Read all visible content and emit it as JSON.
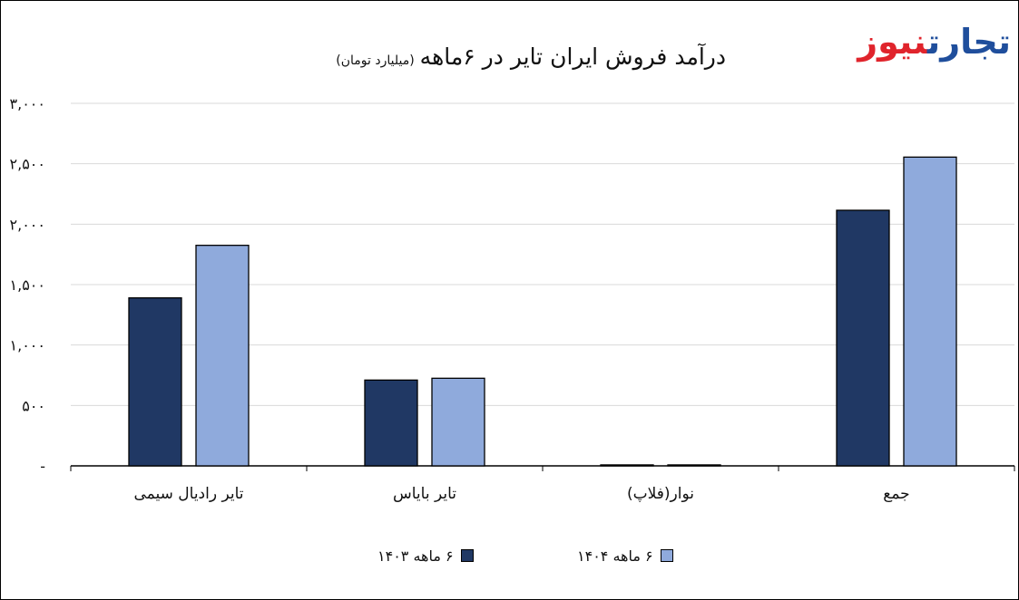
{
  "header": {
    "title": "درآمد فروش ایران تایر در ۶ماهه",
    "unit": "(میلیارد تومان)",
    "logo_part1": "تجارت",
    "logo_part2": "نیوز"
  },
  "legend": {
    "series1": "۶ ماهه ۱۴۰۳",
    "series2": "۶ ماهه ۱۴۰۴"
  },
  "colors": {
    "series1": "#203864",
    "series2": "#8faadc",
    "grid": "#d9d9d9",
    "logo_blue": "#1f4e9c",
    "logo_red": "#e0242c"
  },
  "chart_data": {
    "type": "bar",
    "title": "درآمد فروش ایران تایر در ۶ماهه",
    "subtitle": "(میلیارد تومان)",
    "categories": [
      "تایر رادیال سیمی",
      "تایر بایاس",
      "نوار(فلاپ)",
      "جمع"
    ],
    "series": [
      {
        "name": "۶ ماهه ۱۴۰۳",
        "values": [
          1390,
          710,
          8,
          2115
        ]
      },
      {
        "name": "۶ ماهه ۱۴۰۴",
        "values": [
          1825,
          725,
          8,
          2555
        ]
      }
    ],
    "ylim": [
      0,
      3000
    ],
    "yticks": [
      0,
      500,
      1000,
      1500,
      2000,
      2500,
      3000
    ],
    "ytick_labels": [
      "-",
      "۵۰۰",
      "۱,۰۰۰",
      "۱,۵۰۰",
      "۲,۰۰۰",
      "۲,۵۰۰",
      "۳,۰۰۰"
    ],
    "grid": true,
    "legend_position": "bottom"
  }
}
